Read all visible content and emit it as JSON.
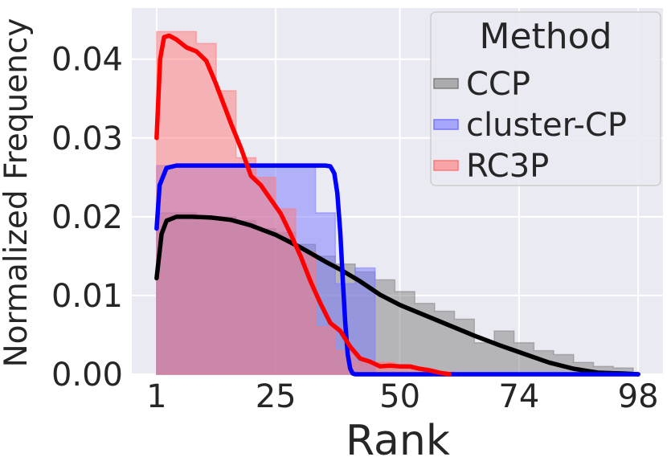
{
  "chart_data": {
    "type": "area",
    "xlabel": "Rank",
    "ylabel": "Normalized Frequency",
    "xlim": [
      -4,
      103
    ],
    "ylim": [
      0,
      0.0465
    ],
    "xticks": [
      1,
      25,
      50,
      74,
      98
    ],
    "xtick_labels": [
      "1",
      "25",
      "50",
      "74",
      "98"
    ],
    "yticks": [
      0.0,
      0.01,
      0.02,
      0.03,
      0.04
    ],
    "ytick_labels": [
      "0.00",
      "0.01",
      "0.02",
      "0.03",
      "0.04"
    ],
    "grid": true,
    "legend": {
      "title": "Method",
      "placement": "top-right",
      "entries": [
        "CCP",
        "cluster-CP",
        "RC3P"
      ]
    },
    "histogram_bins": [
      1,
      5,
      9,
      13,
      17,
      21,
      25,
      29,
      33,
      37,
      41,
      45,
      49,
      53,
      57,
      61,
      65,
      69,
      73,
      77,
      81,
      85,
      89,
      93,
      97
    ],
    "series": [
      {
        "name": "CCP",
        "fill_color": "#808080",
        "line_color": "#000000",
        "hist": [
          0.0205,
          0.0205,
          0.02,
          0.02,
          0.0195,
          0.0185,
          0.018,
          0.0165,
          0.015,
          0.014,
          0.013,
          0.012,
          0.0105,
          0.009,
          0.008,
          0.007,
          0.004,
          0.0055,
          0.004,
          0.003,
          0.0025,
          0.0015,
          0.001,
          0.0008
        ],
        "kde_x": [
          1,
          2,
          3,
          5,
          8,
          12,
          16,
          20,
          25,
          30,
          35,
          38,
          42,
          46,
          50,
          55,
          60,
          65,
          70,
          75,
          80,
          85,
          90,
          95,
          98
        ],
        "kde_y": [
          0.0122,
          0.0178,
          0.0195,
          0.02,
          0.02,
          0.0199,
          0.0196,
          0.0189,
          0.0177,
          0.0161,
          0.0143,
          0.0133,
          0.0118,
          0.0101,
          0.0088,
          0.0075,
          0.0062,
          0.0049,
          0.0037,
          0.0026,
          0.0015,
          0.0007,
          0.0002,
          0.0001,
          0.0
        ]
      },
      {
        "name": "cluster-CP",
        "fill_color": "#7777ff",
        "line_color": "#0000ff",
        "hist": [
          0.0265,
          0.0265,
          0.0265,
          0.0265,
          0.0265,
          0.0265,
          0.0265,
          0.0265,
          0.0205,
          0.0115,
          0.0135,
          0,
          0,
          0,
          0,
          0,
          0,
          0,
          0,
          0,
          0,
          0,
          0,
          0
        ],
        "kde_x": [
          1,
          1.6,
          3,
          5,
          10,
          20,
          30,
          35,
          36,
          36.8,
          37.4,
          38,
          38.5,
          39,
          39.5,
          40,
          40.5,
          41,
          50,
          60,
          70,
          80,
          90,
          98
        ],
        "kde_y": [
          0.0185,
          0.024,
          0.0262,
          0.0265,
          0.0265,
          0.0265,
          0.0265,
          0.0265,
          0.0264,
          0.0255,
          0.023,
          0.018,
          0.012,
          0.0065,
          0.0025,
          0.0007,
          0.0001,
          0.0,
          0.0,
          0.0,
          0.0,
          0.0,
          0.0,
          0.0
        ]
      },
      {
        "name": "RC3P",
        "fill_color": "#ff7777",
        "line_color": "#ff0000",
        "hist": [
          0.0435,
          0.0435,
          0.042,
          0.036,
          0.0275,
          0.025,
          0.021,
          0.0155,
          0.006,
          0.003,
          0.0015,
          0.0015,
          0.001,
          0.0005,
          0.0003,
          0,
          0,
          0,
          0,
          0,
          0,
          0,
          0,
          0
        ],
        "kde_x": [
          1,
          1.7,
          2.5,
          3.5,
          5,
          7,
          9,
          11,
          13,
          16,
          18,
          20,
          22,
          24,
          26,
          28,
          30,
          32,
          34,
          36,
          38,
          40,
          42,
          44,
          46,
          48,
          50,
          52,
          54,
          56,
          58,
          60
        ],
        "kde_y": [
          0.03,
          0.04,
          0.0428,
          0.043,
          0.0425,
          0.0415,
          0.041,
          0.0398,
          0.0368,
          0.0318,
          0.0287,
          0.0252,
          0.024,
          0.0222,
          0.0204,
          0.0178,
          0.015,
          0.0118,
          0.009,
          0.0065,
          0.0055,
          0.0035,
          0.002,
          0.0016,
          0.001,
          0.0011,
          0.001,
          0.001,
          0.0007,
          0.0005,
          0.0002,
          0.0
        ]
      }
    ]
  }
}
